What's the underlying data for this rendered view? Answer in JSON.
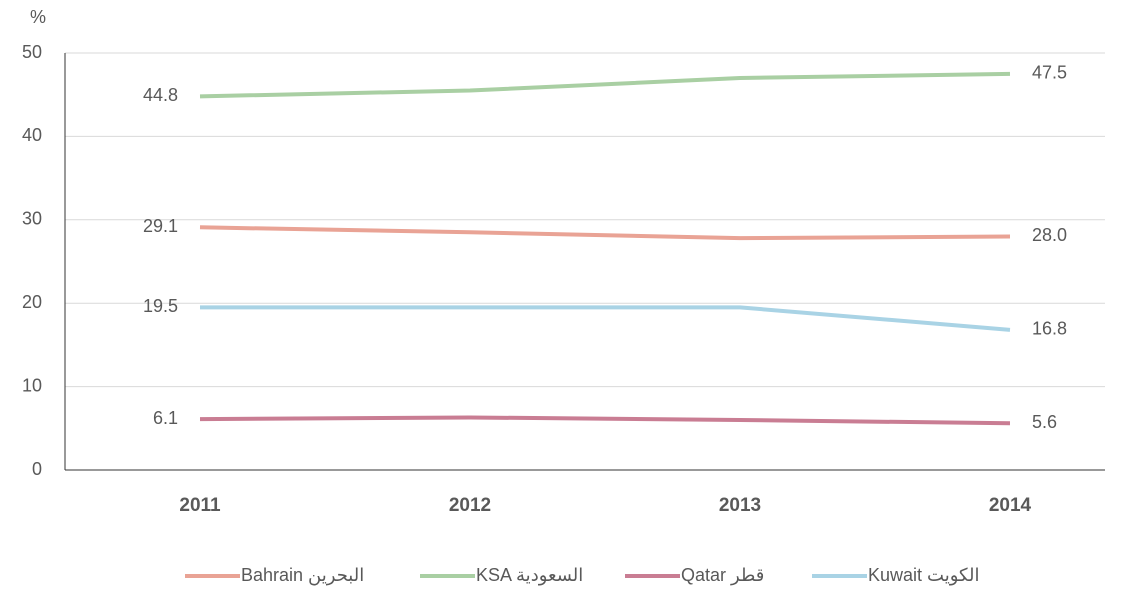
{
  "chart_data": {
    "type": "line",
    "y_label": "%",
    "categories": [
      "2011",
      "2012",
      "2013",
      "2014"
    ],
    "ylim": [
      0,
      50
    ],
    "yticks": [
      0,
      10,
      20,
      30,
      40,
      50
    ],
    "grid": true,
    "series": [
      {
        "name": "Bahrain البحرين",
        "color": "#e9a395",
        "values": [
          29.1,
          28.5,
          27.8,
          28.0
        ],
        "value_labels": [
          "29.1",
          null,
          null,
          "28.0"
        ]
      },
      {
        "name": "KSA السعودية",
        "color": "#a9cfa3",
        "values": [
          44.8,
          45.5,
          47.0,
          47.5
        ],
        "value_labels": [
          "44.8",
          null,
          null,
          "47.5"
        ]
      },
      {
        "name": "Qatar قطر",
        "color": "#c97d93",
        "values": [
          6.1,
          6.3,
          6.0,
          5.6
        ],
        "value_labels": [
          "6.1",
          null,
          null,
          "5.6"
        ]
      },
      {
        "name": "Kuwait  الكويت",
        "color": "#a9d3e5",
        "values": [
          19.5,
          19.5,
          19.5,
          16.8
        ],
        "value_labels": [
          "19.5",
          null,
          null,
          "16.8"
        ]
      }
    ]
  }
}
